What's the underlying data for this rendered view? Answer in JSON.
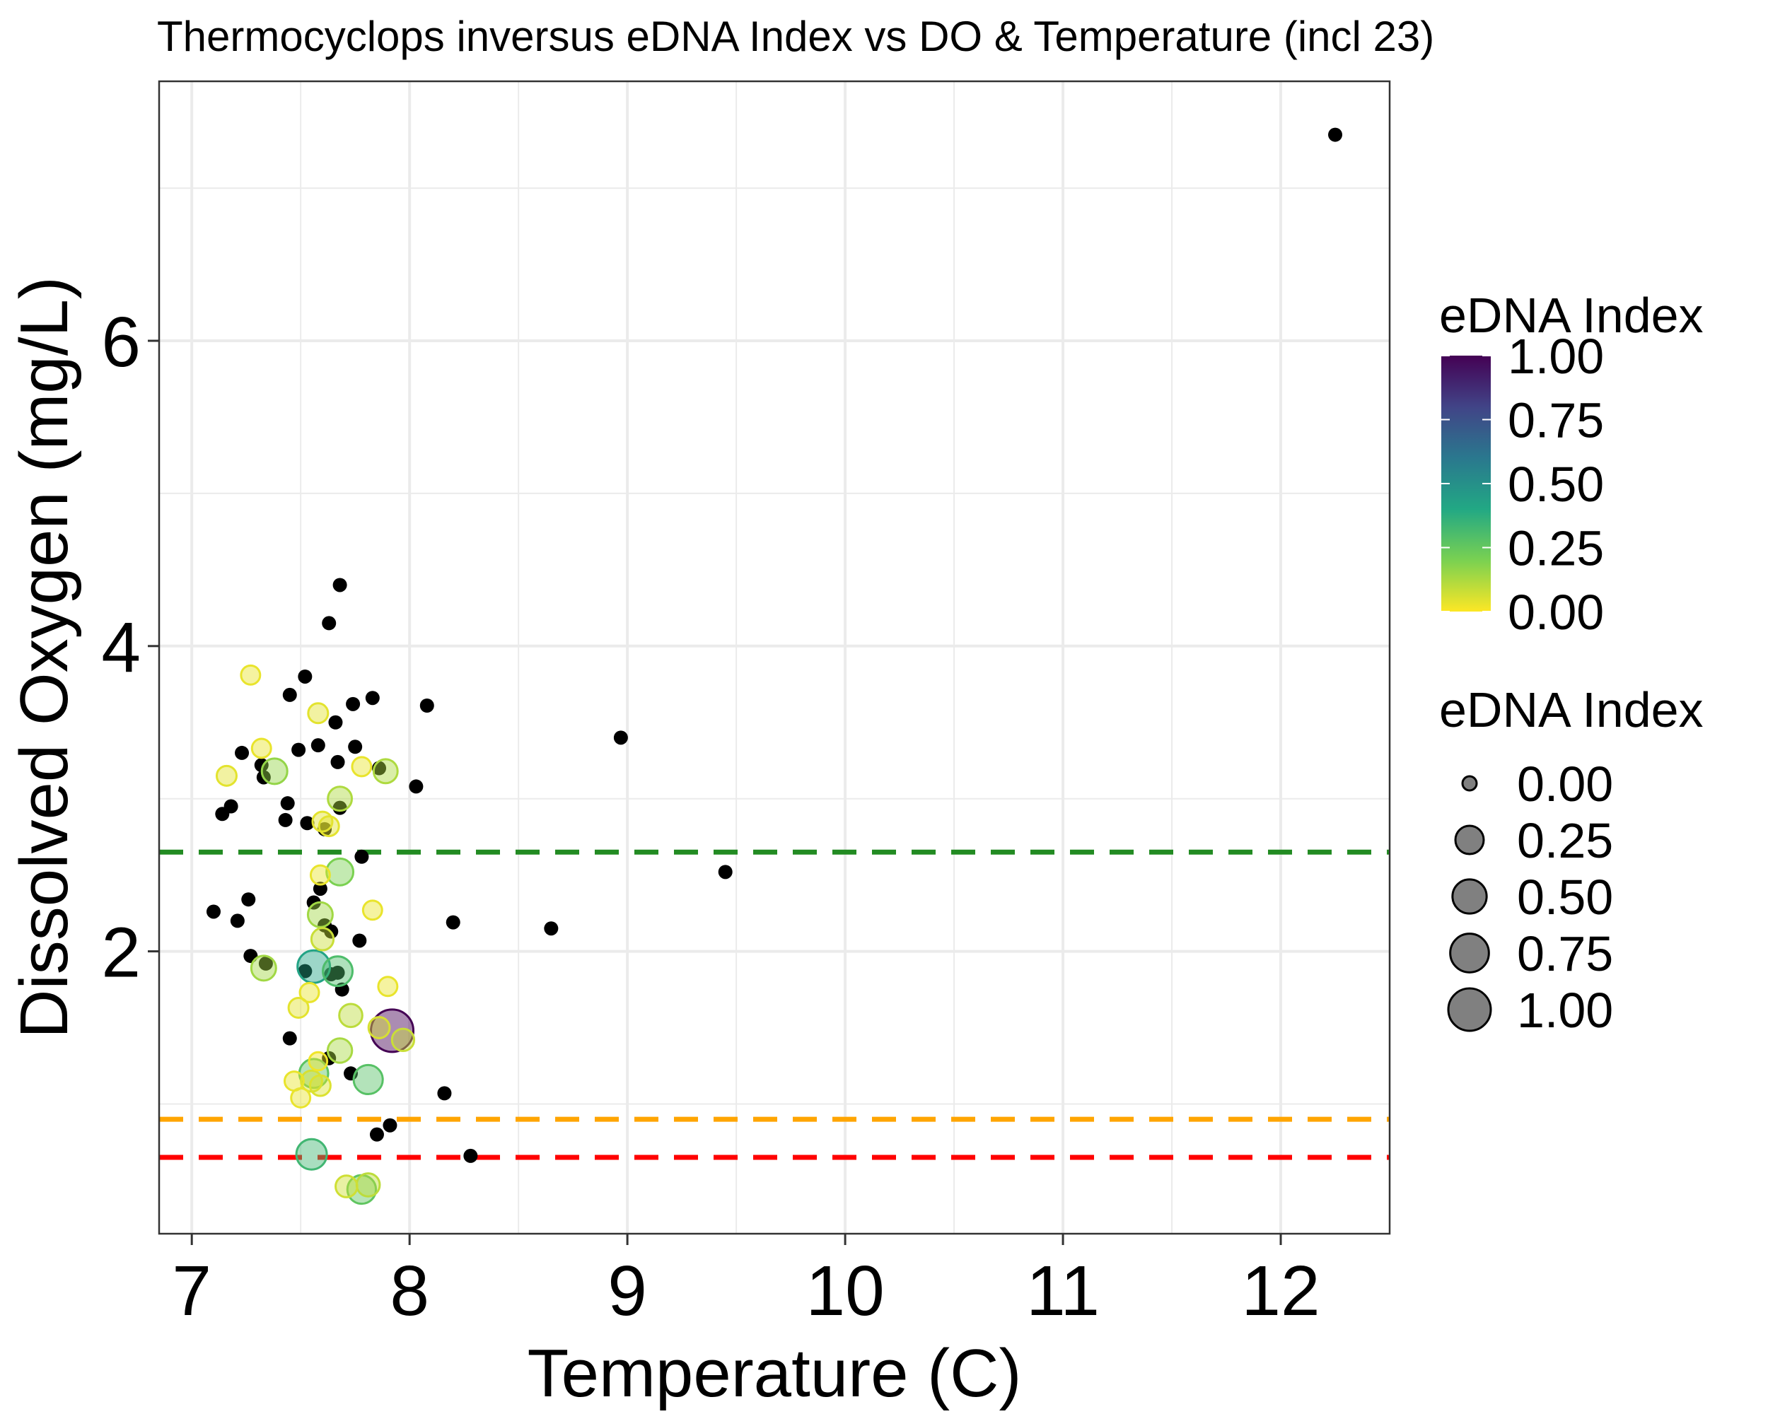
{
  "chart_data": {
    "type": "scatter",
    "title": "Thermocyclops inversus eDNA Index vs DO & Temperature (incl 23)",
    "xlabel": "Temperature (C)",
    "ylabel": "Dissolved Oxygen (mg/L)",
    "xlim": [
      6.85,
      12.5
    ],
    "ylim": [
      0.15,
      7.7
    ],
    "x_ticks": [
      7,
      8,
      9,
      10,
      11,
      12
    ],
    "y_ticks": [
      2,
      4,
      6
    ],
    "grid": true,
    "reference_lines": [
      {
        "y": 2.65,
        "color": "#228B22",
        "style": "dashed"
      },
      {
        "y": 0.9,
        "color": "#FFA500",
        "style": "dashed"
      },
      {
        "y": 0.65,
        "color": "#FF0000",
        "style": "dashed"
      }
    ],
    "legend_color": {
      "title": "eDNA Index",
      "labels": [
        "1.00",
        "0.75",
        "0.50",
        "0.25",
        "0.00"
      ],
      "placement": "right",
      "colormap": [
        "#FDE725",
        "#7AD151",
        "#22A884",
        "#2A788E",
        "#414487",
        "#440154"
      ]
    },
    "legend_size": {
      "title": "eDNA Index",
      "labels": [
        "0.00",
        "0.25",
        "0.50",
        "0.75",
        "1.00"
      ],
      "values": [
        0,
        0.25,
        0.5,
        0.75,
        1.0
      ],
      "placement": "right"
    },
    "na_points": [
      {
        "x": 12.25,
        "y": 7.35
      },
      {
        "x": 7.68,
        "y": 4.4
      },
      {
        "x": 7.63,
        "y": 4.15
      },
      {
        "x": 7.52,
        "y": 3.8
      },
      {
        "x": 7.45,
        "y": 3.68
      },
      {
        "x": 7.83,
        "y": 3.66
      },
      {
        "x": 7.74,
        "y": 3.62
      },
      {
        "x": 8.08,
        "y": 3.61
      },
      {
        "x": 7.66,
        "y": 3.5
      },
      {
        "x": 8.97,
        "y": 3.4
      },
      {
        "x": 7.58,
        "y": 3.35
      },
      {
        "x": 7.75,
        "y": 3.34
      },
      {
        "x": 7.49,
        "y": 3.32
      },
      {
        "x": 7.23,
        "y": 3.3
      },
      {
        "x": 7.67,
        "y": 3.24
      },
      {
        "x": 7.32,
        "y": 3.22
      },
      {
        "x": 7.86,
        "y": 3.2
      },
      {
        "x": 7.33,
        "y": 3.14
      },
      {
        "x": 8.03,
        "y": 3.08
      },
      {
        "x": 7.44,
        "y": 2.97
      },
      {
        "x": 7.18,
        "y": 2.95
      },
      {
        "x": 7.68,
        "y": 2.94
      },
      {
        "x": 7.14,
        "y": 2.9
      },
      {
        "x": 7.43,
        "y": 2.86
      },
      {
        "x": 7.53,
        "y": 2.84
      },
      {
        "x": 7.61,
        "y": 2.8
      },
      {
        "x": 7.78,
        "y": 2.62
      },
      {
        "x": 9.45,
        "y": 2.52
      },
      {
        "x": 7.59,
        "y": 2.41
      },
      {
        "x": 7.26,
        "y": 2.34
      },
      {
        "x": 7.56,
        "y": 2.32
      },
      {
        "x": 7.1,
        "y": 2.26
      },
      {
        "x": 7.21,
        "y": 2.2
      },
      {
        "x": 8.2,
        "y": 2.19
      },
      {
        "x": 7.61,
        "y": 2.17
      },
      {
        "x": 8.65,
        "y": 2.15
      },
      {
        "x": 7.64,
        "y": 2.13
      },
      {
        "x": 7.77,
        "y": 2.07
      },
      {
        "x": 7.27,
        "y": 1.97
      },
      {
        "x": 7.34,
        "y": 1.92
      },
      {
        "x": 7.52,
        "y": 1.87
      },
      {
        "x": 7.67,
        "y": 1.86
      },
      {
        "x": 7.64,
        "y": 1.85
      },
      {
        "x": 7.69,
        "y": 1.75
      },
      {
        "x": 7.45,
        "y": 1.43
      },
      {
        "x": 7.63,
        "y": 1.3
      },
      {
        "x": 7.73,
        "y": 1.2
      },
      {
        "x": 8.16,
        "y": 1.07
      },
      {
        "x": 7.91,
        "y": 0.86
      },
      {
        "x": 7.85,
        "y": 0.8
      },
      {
        "x": 8.28,
        "y": 0.66
      }
    ],
    "points": [
      {
        "x": 7.92,
        "y": 1.48,
        "edna": 1.0
      },
      {
        "x": 7.56,
        "y": 1.9,
        "edna": 0.42
      },
      {
        "x": 7.55,
        "y": 0.67,
        "edna": 0.33
      },
      {
        "x": 7.67,
        "y": 1.87,
        "edna": 0.3
      },
      {
        "x": 7.81,
        "y": 1.16,
        "edna": 0.28
      },
      {
        "x": 7.56,
        "y": 1.2,
        "edna": 0.27
      },
      {
        "x": 7.78,
        "y": 0.44,
        "edna": 0.26
      },
      {
        "x": 7.68,
        "y": 2.52,
        "edna": 0.2
      },
      {
        "x": 7.38,
        "y": 3.18,
        "edna": 0.16
      },
      {
        "x": 7.59,
        "y": 2.24,
        "edna": 0.14
      },
      {
        "x": 7.33,
        "y": 1.89,
        "edna": 0.14
      },
      {
        "x": 7.68,
        "y": 1.35,
        "edna": 0.13
      },
      {
        "x": 7.68,
        "y": 3.0,
        "edna": 0.12
      },
      {
        "x": 7.89,
        "y": 3.18,
        "edna": 0.12
      },
      {
        "x": 7.73,
        "y": 1.58,
        "edna": 0.1
      },
      {
        "x": 7.81,
        "y": 0.47,
        "edna": 0.1
      },
      {
        "x": 7.6,
        "y": 2.08,
        "edna": 0.08
      },
      {
        "x": 7.97,
        "y": 1.42,
        "edna": 0.08
      },
      {
        "x": 7.71,
        "y": 0.46,
        "edna": 0.07
      },
      {
        "x": 7.86,
        "y": 1.5,
        "edna": 0.06
      },
      {
        "x": 7.55,
        "y": 1.15,
        "edna": 0.06
      },
      {
        "x": 7.59,
        "y": 1.12,
        "edna": 0.05
      },
      {
        "x": 7.58,
        "y": 3.56,
        "edna": 0.04
      },
      {
        "x": 7.16,
        "y": 3.15,
        "edna": 0.04
      },
      {
        "x": 7.6,
        "y": 2.85,
        "edna": 0.04
      },
      {
        "x": 7.63,
        "y": 2.82,
        "edna": 0.04
      },
      {
        "x": 7.49,
        "y": 1.63,
        "edna": 0.04
      },
      {
        "x": 7.27,
        "y": 3.81,
        "edna": 0.03
      },
      {
        "x": 7.32,
        "y": 3.33,
        "edna": 0.03
      },
      {
        "x": 7.78,
        "y": 3.21,
        "edna": 0.03
      },
      {
        "x": 7.59,
        "y": 2.5,
        "edna": 0.03
      },
      {
        "x": 7.83,
        "y": 2.27,
        "edna": 0.03
      },
      {
        "x": 7.9,
        "y": 1.77,
        "edna": 0.03
      },
      {
        "x": 7.54,
        "y": 1.73,
        "edna": 0.03
      },
      {
        "x": 7.47,
        "y": 1.15,
        "edna": 0.03
      },
      {
        "x": 7.5,
        "y": 1.04,
        "edna": 0.03
      },
      {
        "x": 7.58,
        "y": 1.28,
        "edna": 0.02
      }
    ]
  }
}
